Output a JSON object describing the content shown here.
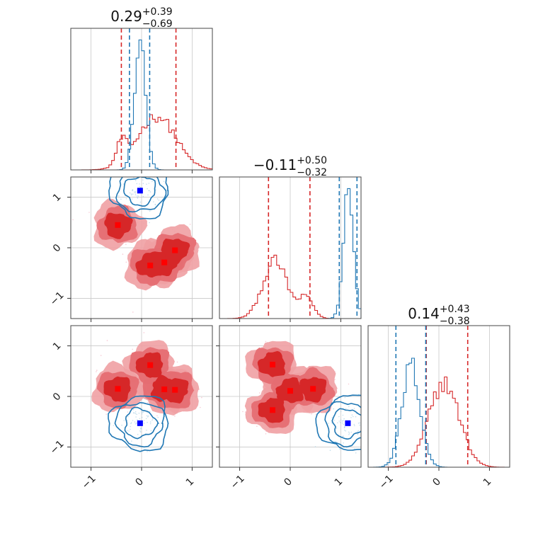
{
  "chart_data": {
    "type": "corner",
    "colors": {
      "red": "#d62728",
      "blue": "#1f77b4",
      "red_fill_light": "#f0a0a3",
      "marker_red": "#ff0000",
      "marker_blue": "#0000ff"
    },
    "axis_range": [
      -1.4,
      1.4
    ],
    "ticks": [
      {
        "value": -1,
        "label": "−1"
      },
      {
        "value": 0,
        "label": "0"
      },
      {
        "value": 1,
        "label": "1"
      }
    ],
    "grid": true,
    "panels": [
      {
        "kind": "hist",
        "row": 0,
        "col": 0,
        "title": {
          "value": "0.29",
          "sup": "+0.39",
          "sub": "−0.69"
        },
        "red_quantiles": [
          -0.4,
          0.68
        ],
        "blue_quantiles": [
          -0.24,
          0.16
        ],
        "red_hist": {
          "mu": 0.3,
          "sigma": 0.38,
          "amp": 0.42,
          "mu2": -0.4,
          "sigma2": 0.1,
          "amp2": 0.17
        },
        "blue_hist": {
          "mu": -0.03,
          "sigma": 0.11,
          "amp": 1.0
        }
      },
      {
        "kind": "hist",
        "row": 1,
        "col": 1,
        "title": {
          "value": "−0.11",
          "sup": "+0.50",
          "sub": "−0.32"
        },
        "red_quantiles": [
          -0.43,
          0.39
        ],
        "blue_quantiles": [
          0.97,
          1.32
        ],
        "red_hist": {
          "mu": -0.3,
          "sigma": 0.24,
          "amp": 0.45,
          "mu2": 0.32,
          "sigma2": 0.14,
          "amp2": 0.16
        },
        "blue_hist": {
          "mu": 1.15,
          "sigma": 0.1,
          "amp": 1.0
        }
      },
      {
        "kind": "hist",
        "row": 2,
        "col": 2,
        "title": {
          "value": "0.14",
          "sup": "+0.43",
          "sub": "−0.38"
        },
        "red_quantiles": [
          -0.25,
          0.57
        ],
        "blue_quantiles": [
          -0.85,
          -0.26
        ],
        "red_hist": {
          "mu": 0.1,
          "sigma": 0.3,
          "amp": 0.66
        },
        "blue_hist": {
          "mu": -0.55,
          "sigma": 0.18,
          "amp": 0.8
        }
      },
      {
        "kind": "scatter2d",
        "row": 1,
        "col": 0,
        "red_modes": [
          [
            -0.47,
            0.45
          ],
          [
            0.17,
            -0.35
          ],
          [
            0.45,
            -0.29
          ],
          [
            0.66,
            -0.05
          ]
        ],
        "blue_modes": [
          [
            -0.03,
            1.13
          ]
        ]
      },
      {
        "kind": "scatter2d",
        "row": 2,
        "col": 0,
        "red_modes": [
          [
            -0.47,
            0.15
          ],
          [
            0.17,
            0.62
          ],
          [
            0.45,
            0.14
          ],
          [
            0.66,
            0.13
          ]
        ],
        "blue_modes": [
          [
            -0.03,
            -0.53
          ]
        ]
      },
      {
        "kind": "scatter2d",
        "row": 2,
        "col": 1,
        "red_modes": [
          [
            -0.35,
            0.63
          ],
          [
            -0.35,
            -0.27
          ],
          [
            0.0,
            0.11
          ],
          [
            0.45,
            0.15
          ]
        ],
        "blue_modes": [
          [
            1.14,
            -0.53
          ]
        ]
      }
    ]
  }
}
